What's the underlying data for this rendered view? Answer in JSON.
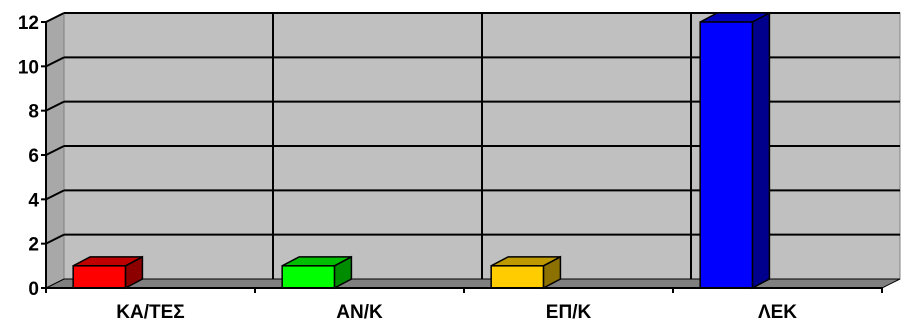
{
  "chart_data": {
    "type": "bar",
    "style": "3d-column",
    "categories": [
      "ΚΑ/ΤΕΣ",
      "ΑΝ/Κ",
      "ΕΠ/Κ",
      "ΛΕΚ"
    ],
    "values": [
      1,
      1,
      1,
      12
    ],
    "bar_colors": [
      "#ff0000",
      "#00ff00",
      "#ffcc00",
      "#0000ff"
    ],
    "y_ticks": [
      "0",
      "2",
      "4",
      "6",
      "8",
      "10",
      "12"
    ],
    "ylim": [
      0,
      12
    ],
    "grid": true,
    "legend": "none",
    "title": "",
    "xlabel": "",
    "ylabel": ""
  },
  "colors": {
    "plot_wall": "#c0c0c0",
    "floor": "#808080",
    "gridline": "#000000"
  }
}
